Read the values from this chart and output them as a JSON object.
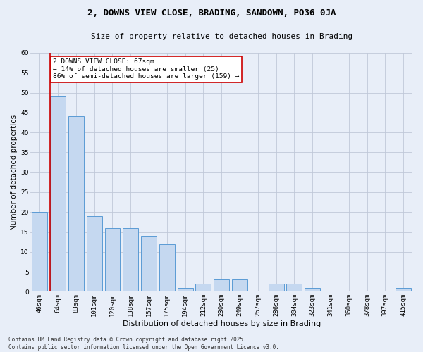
{
  "title": "2, DOWNS VIEW CLOSE, BRADING, SANDOWN, PO36 0JA",
  "subtitle": "Size of property relative to detached houses in Brading",
  "xlabel": "Distribution of detached houses by size in Brading",
  "ylabel": "Number of detached properties",
  "categories": [
    "46sqm",
    "64sqm",
    "83sqm",
    "101sqm",
    "120sqm",
    "138sqm",
    "157sqm",
    "175sqm",
    "194sqm",
    "212sqm",
    "230sqm",
    "249sqm",
    "267sqm",
    "286sqm",
    "304sqm",
    "323sqm",
    "341sqm",
    "360sqm",
    "378sqm",
    "397sqm",
    "415sqm"
  ],
  "values": [
    20,
    49,
    44,
    19,
    16,
    16,
    14,
    12,
    1,
    2,
    3,
    3,
    0,
    2,
    2,
    1,
    0,
    0,
    0,
    0,
    1
  ],
  "bar_color": "#c5d8f0",
  "bar_edge_color": "#5b9bd5",
  "grid_color": "#c0c8d8",
  "background_color": "#e8eef8",
  "vline_x_index": 1,
  "vline_color": "#cc0000",
  "annotation_text": "2 DOWNS VIEW CLOSE: 67sqm\n← 14% of detached houses are smaller (25)\n86% of semi-detached houses are larger (159) →",
  "annotation_box_color": "#ffffff",
  "annotation_box_edge_color": "#cc0000",
  "footer": "Contains HM Land Registry data © Crown copyright and database right 2025.\nContains public sector information licensed under the Open Government Licence v3.0.",
  "ylim": [
    0,
    60
  ],
  "yticks": [
    0,
    5,
    10,
    15,
    20,
    25,
    30,
    35,
    40,
    45,
    50,
    55,
    60
  ],
  "title_fontsize": 9,
  "subtitle_fontsize": 8,
  "ylabel_fontsize": 7.5,
  "xlabel_fontsize": 8,
  "tick_fontsize": 6.5,
  "annotation_fontsize": 6.8,
  "footer_fontsize": 5.5
}
